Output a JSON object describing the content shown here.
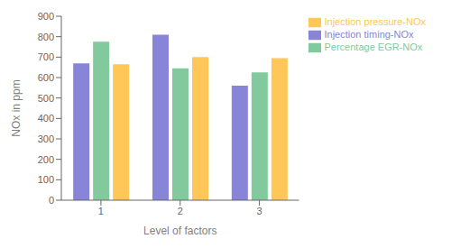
{
  "chart_data": {
    "type": "bar",
    "categories": [
      "1",
      "2",
      "3"
    ],
    "series": [
      {
        "name": "Injection timing-NOx",
        "values": [
          670,
          810,
          560
        ],
        "color": "#8884d8"
      },
      {
        "name": "Percentage EGR-NOx",
        "values": [
          775,
          645,
          625
        ],
        "color": "#82ca9d"
      },
      {
        "name": "Injection pressure-NOx",
        "values": [
          665,
          700,
          695
        ],
        "color": "#ffc658"
      }
    ],
    "xlabel": "Level of factors",
    "ylabel": "NOx in ppm",
    "ylim": [
      0,
      900
    ],
    "yticks": [
      0,
      100,
      200,
      300,
      400,
      500,
      600,
      700,
      800,
      900
    ],
    "grid": false,
    "legend": "upper right"
  }
}
